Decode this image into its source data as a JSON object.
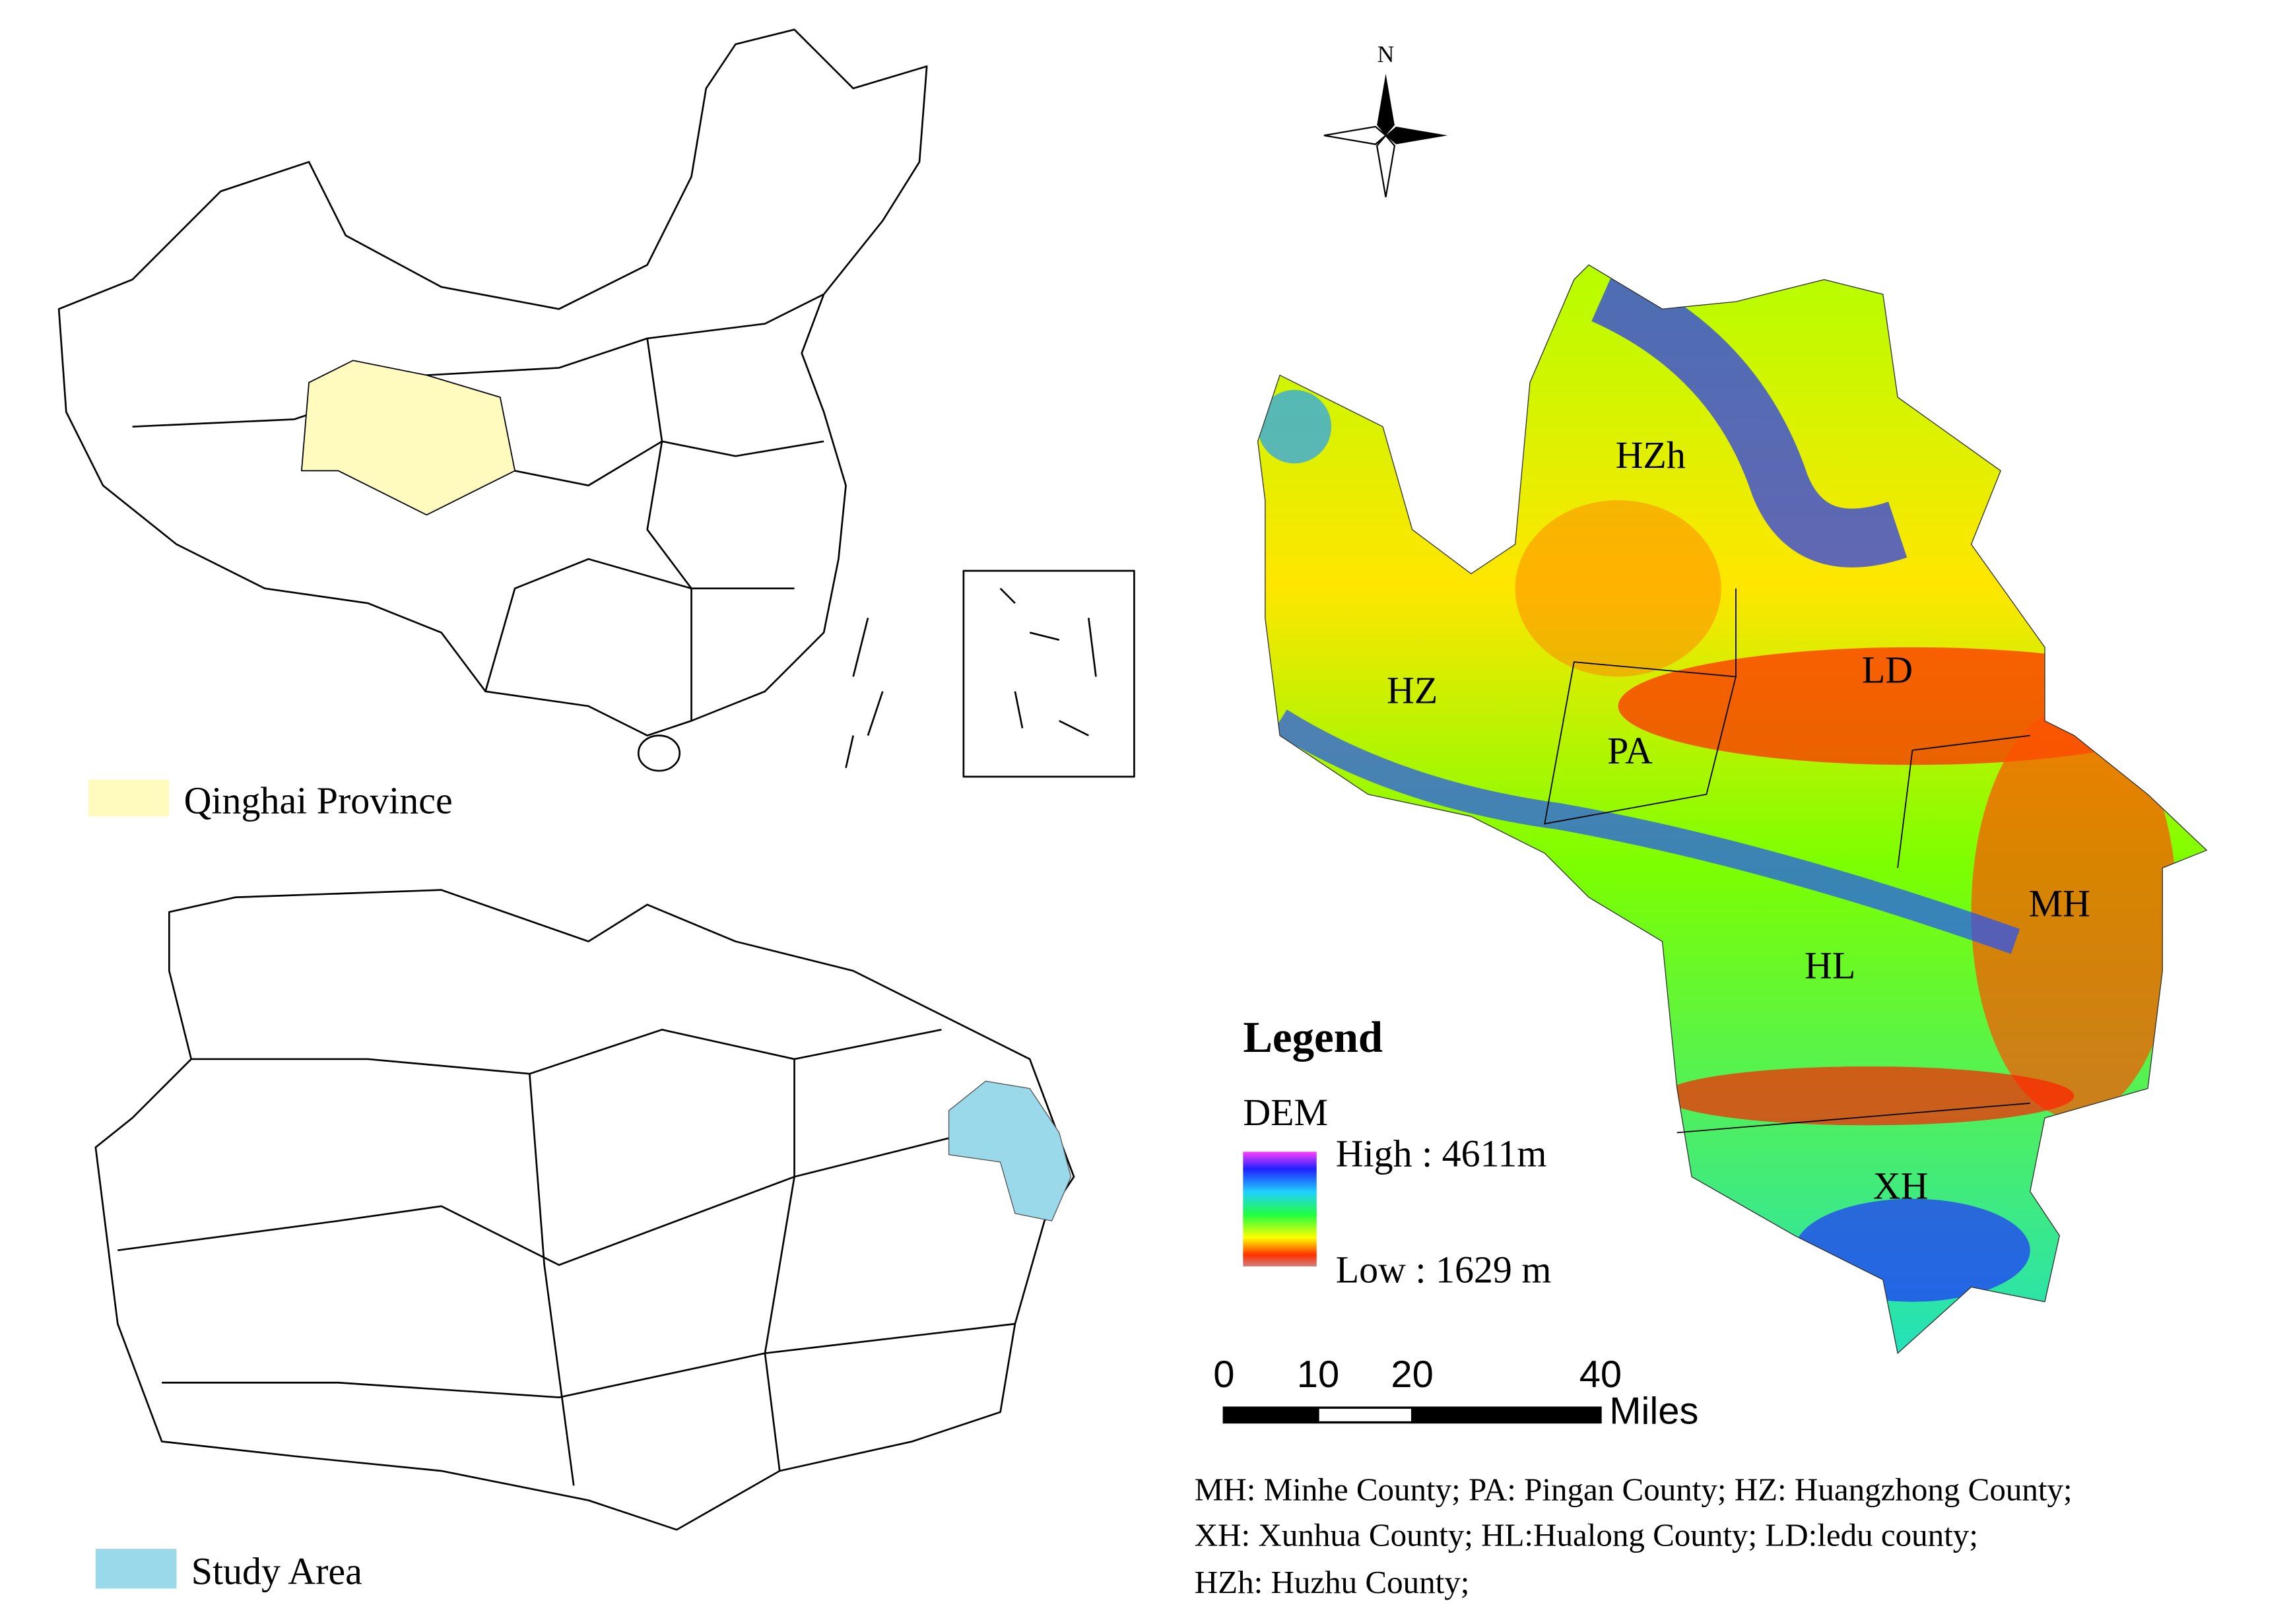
{
  "inset_map": {
    "legend": "Qinghai Province"
  },
  "province_map": {
    "legend": "Study Area"
  },
  "dem_map": {
    "north": "N",
    "counties": [
      "HZh",
      "HZ",
      "PA",
      "LD",
      "MH",
      "HL",
      "XH"
    ],
    "legend_title": "Legend",
    "dem_title": "DEM",
    "high": "High : 4611m",
    "low": "Low : 1629 m"
  },
  "scale_bar": {
    "ticks": [
      0,
      10,
      20,
      40
    ],
    "unit": "Miles"
  },
  "footnote": [
    "MH: Minhe County; PA: Pingan County; HZ: Huangzhong County;",
    "XH: Xunhua County; HL:Hualong County; LD:ledu county;",
    "HZh: Huzhu County;"
  ]
}
